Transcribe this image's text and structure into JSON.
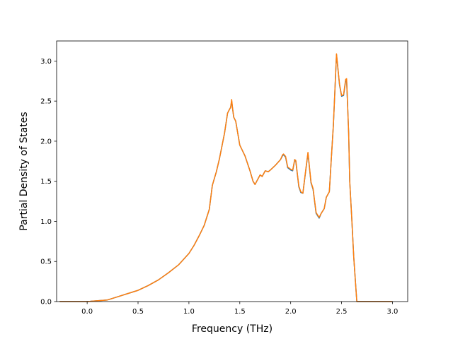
{
  "chart_data": {
    "type": "line",
    "title": "",
    "xlabel": "Frequency (THz)",
    "ylabel": "Partial Density of States",
    "xlim": [
      -0.3,
      3.15
    ],
    "ylim": [
      0.0,
      3.25
    ],
    "xticks": [
      0.0,
      0.5,
      1.0,
      1.5,
      2.0,
      2.5,
      3.0
    ],
    "xtick_labels": [
      "0.0",
      "0.5",
      "1.0",
      "1.5",
      "2.0",
      "2.5",
      "3.0"
    ],
    "yticks": [
      0.0,
      0.5,
      1.0,
      1.5,
      2.0,
      2.5,
      3.0
    ],
    "ytick_labels": [
      "0.0",
      "0.5",
      "1.0",
      "1.5",
      "2.0",
      "2.5",
      "3.0"
    ],
    "grid": false,
    "legend": "none",
    "series": [
      {
        "color": "#1f77b4",
        "x": [
          -0.27,
          0.0,
          0.2,
          0.3,
          0.4,
          0.5,
          0.6,
          0.7,
          0.8,
          0.9,
          1.0,
          1.05,
          1.1,
          1.15,
          1.2,
          1.23,
          1.27,
          1.3,
          1.35,
          1.38,
          1.4,
          1.41,
          1.42,
          1.43,
          1.44,
          1.46,
          1.5,
          1.55,
          1.6,
          1.63,
          1.65,
          1.7,
          1.72,
          1.75,
          1.78,
          1.8,
          1.85,
          1.9,
          1.92,
          1.93,
          1.95,
          1.97,
          2.0,
          2.02,
          2.04,
          2.05,
          2.08,
          2.1,
          2.12,
          2.15,
          2.17,
          2.2,
          2.22,
          2.25,
          2.28,
          2.3,
          2.33,
          2.35,
          2.38,
          2.4,
          2.42,
          2.45,
          2.48,
          2.5,
          2.52,
          2.54,
          2.55,
          2.57,
          2.58,
          2.6,
          2.62,
          2.65,
          2.68,
          2.7,
          2.72,
          2.75,
          3.0
        ],
        "y": [
          0.0,
          0.0,
          0.02,
          0.06,
          0.1,
          0.14,
          0.2,
          0.27,
          0.36,
          0.46,
          0.6,
          0.7,
          0.82,
          0.95,
          1.15,
          1.45,
          1.62,
          1.78,
          2.1,
          2.35,
          2.4,
          2.42,
          2.5,
          2.4,
          2.3,
          2.25,
          1.95,
          1.82,
          1.63,
          1.5,
          1.46,
          1.58,
          1.56,
          1.63,
          1.62,
          1.64,
          1.7,
          1.77,
          1.82,
          1.83,
          1.8,
          1.67,
          1.64,
          1.63,
          1.77,
          1.75,
          1.43,
          1.36,
          1.35,
          1.65,
          1.85,
          1.48,
          1.4,
          1.1,
          1.04,
          1.1,
          1.16,
          1.3,
          1.37,
          1.8,
          2.2,
          3.08,
          2.7,
          2.56,
          2.57,
          2.75,
          2.76,
          2.1,
          1.5,
          1.05,
          0.55,
          0.0,
          0.0,
          0.0,
          0.0,
          0.0,
          0.0
        ]
      },
      {
        "color": "#ff7f0e",
        "x": [
          -0.27,
          0.0,
          0.2,
          0.3,
          0.4,
          0.5,
          0.6,
          0.7,
          0.8,
          0.9,
          1.0,
          1.05,
          1.1,
          1.15,
          1.2,
          1.23,
          1.27,
          1.3,
          1.35,
          1.38,
          1.4,
          1.41,
          1.42,
          1.43,
          1.44,
          1.46,
          1.5,
          1.55,
          1.6,
          1.63,
          1.65,
          1.7,
          1.72,
          1.75,
          1.78,
          1.8,
          1.85,
          1.9,
          1.92,
          1.93,
          1.95,
          1.97,
          2.0,
          2.02,
          2.04,
          2.05,
          2.08,
          2.1,
          2.12,
          2.15,
          2.17,
          2.2,
          2.22,
          2.25,
          2.28,
          2.3,
          2.33,
          2.35,
          2.38,
          2.4,
          2.42,
          2.45,
          2.48,
          2.5,
          2.52,
          2.54,
          2.55,
          2.57,
          2.58,
          2.6,
          2.62,
          2.65,
          2.68,
          2.7,
          2.72,
          2.75,
          3.0
        ],
        "y": [
          0.0,
          0.0,
          0.02,
          0.06,
          0.1,
          0.14,
          0.2,
          0.27,
          0.36,
          0.46,
          0.6,
          0.7,
          0.82,
          0.95,
          1.15,
          1.45,
          1.62,
          1.78,
          2.1,
          2.35,
          2.4,
          2.42,
          2.52,
          2.4,
          2.3,
          2.25,
          1.95,
          1.82,
          1.63,
          1.5,
          1.46,
          1.58,
          1.56,
          1.63,
          1.62,
          1.64,
          1.7,
          1.77,
          1.83,
          1.84,
          1.81,
          1.68,
          1.65,
          1.64,
          1.77,
          1.76,
          1.44,
          1.37,
          1.35,
          1.66,
          1.86,
          1.49,
          1.41,
          1.11,
          1.05,
          1.1,
          1.16,
          1.3,
          1.37,
          1.8,
          2.2,
          3.09,
          2.71,
          2.57,
          2.58,
          2.77,
          2.78,
          2.1,
          1.5,
          1.05,
          0.55,
          0.0,
          0.0,
          0.0,
          0.0,
          0.0,
          0.0
        ]
      }
    ]
  }
}
